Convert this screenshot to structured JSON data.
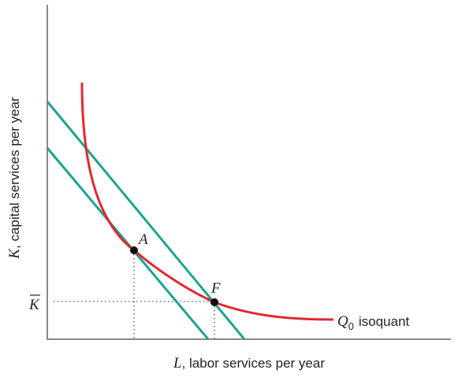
{
  "axes": {
    "x_label_var": "L",
    "x_label_rest": ", labor services per year",
    "y_label_var": "K",
    "y_label_rest": ", capital services per year",
    "k_bar": "K"
  },
  "points": {
    "a_label": "A",
    "f_label": "F"
  },
  "isoquant": {
    "q_var": "Q",
    "q_sub": "0",
    "q_rest": "isoquant"
  },
  "colors": {
    "axis": "#888888",
    "isoquant": "#e0282e",
    "isocost": "#1aa58e",
    "point": "#111111",
    "guide": "#555555",
    "text": "#222222"
  }
}
